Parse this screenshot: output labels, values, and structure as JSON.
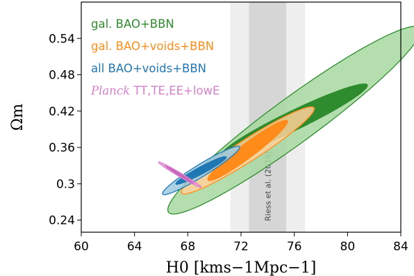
{
  "chart_data": {
    "type": "contour",
    "xlabel": "H0 [kms−1Mpc−1]",
    "ylabel": "Ωm",
    "xlim": [
      60,
      84
    ],
    "ylim": [
      0.22,
      0.6
    ],
    "xticks": [
      60,
      64,
      68,
      72,
      76,
      80,
      84
    ],
    "yticks": [
      0.24,
      0.3,
      0.36,
      0.42,
      0.48,
      0.54
    ],
    "xtick_labels": [
      "60",
      "64",
      "68",
      "72",
      "76",
      "80",
      "84"
    ],
    "ytick_labels": [
      "0.24",
      "0.3",
      "0.36",
      "0.42",
      "0.48",
      "0.54"
    ],
    "grid": false,
    "legend_position": "top-left",
    "bands": [
      {
        "name": "Riess et al. (2019)",
        "center": 74.0,
        "sigma1": [
          72.6,
          75.4
        ],
        "sigma2": [
          71.2,
          76.8
        ],
        "color_outer": "#eeeeee",
        "color_inner": "#d6d6d6"
      }
    ],
    "series": [
      {
        "name": "gal. BAO+BBN",
        "legend_italic": "",
        "legend_rest": "gal. BAO+BBN",
        "color": "#2e8b2e",
        "fill_outer": "#a8d8a0",
        "fill_inner": "#2e8b2e",
        "center": [
          76.0,
          0.405
        ],
        "orientation": "positive",
        "outer_x": [
          66.5,
          83.0
        ],
        "outer_y": [
          0.25,
          0.51
        ],
        "inner_x": [
          70.5,
          78.5
        ],
        "inner_y": [
          0.345,
          0.465
        ]
      },
      {
        "name": "gal. BAO+voids+BBN",
        "legend_italic": "",
        "legend_rest": "gal. BAO+voids+BBN",
        "color": "#ff8c1a",
        "fill_outer": "#ffd199",
        "fill_inner": "#ff8c1a",
        "center": [
          72.5,
          0.355
        ],
        "orientation": "positive",
        "outer_x": [
          67.5,
          77.5
        ],
        "outer_y": [
          0.283,
          0.425
        ],
        "inner_x": [
          69.5,
          75.5
        ],
        "inner_y": [
          0.305,
          0.4
        ]
      },
      {
        "name": "all BAO+voids+BBN",
        "legend_italic": "",
        "legend_rest": "all BAO+voids+BBN",
        "color": "#1f77b4",
        "fill_outer": "#9ecae1",
        "fill_inner": "#1f77b4",
        "center": [
          69.0,
          0.322
        ],
        "orientation": "positive",
        "outer_x": [
          66.4,
          71.9
        ],
        "outer_y": [
          0.292,
          0.362
        ],
        "inner_x": [
          67.3,
          70.9
        ],
        "inner_y": [
          0.301,
          0.345
        ]
      },
      {
        "name": "Planck TT,TE,EE+lowE",
        "legend_italic": "Planck",
        "legend_rest": "TT,TE,EE+lowE",
        "color": "#d67fcb",
        "fill_outer": "#e6a3dc",
        "fill_inner": "#c760bb",
        "center": [
          67.4,
          0.315
        ],
        "orientation": "negative",
        "outer_x": [
          65.8,
          68.6
        ],
        "outer_y": [
          0.298,
          0.336
        ],
        "inner_x": [
          66.3,
          68.3
        ],
        "inner_y": [
          0.302,
          0.33
        ]
      }
    ]
  }
}
